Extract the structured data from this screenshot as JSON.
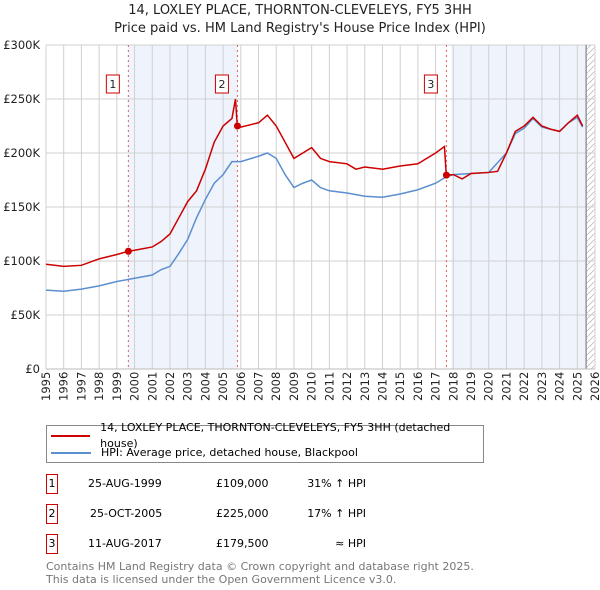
{
  "chart_data": {
    "type": "line",
    "title": "14, LOXLEY PLACE, THORNTON-CLEVELEYS, FY5 3HH",
    "subtitle": "Price paid vs. HM Land Registry's House Price Index (HPI)",
    "xlim": [
      1995,
      2026
    ],
    "ylim": [
      0,
      300000
    ],
    "x_ticks": [
      "1995",
      "1996",
      "1997",
      "1998",
      "1999",
      "2000",
      "2001",
      "2002",
      "2003",
      "2004",
      "2005",
      "2006",
      "2007",
      "2008",
      "2009",
      "2010",
      "2011",
      "2012",
      "2013",
      "2014",
      "2015",
      "2016",
      "2017",
      "2018",
      "2019",
      "2020",
      "2021",
      "2022",
      "2023",
      "2024",
      "2025",
      "2026"
    ],
    "y_ticks": [
      {
        "v": 0,
        "label": "£0"
      },
      {
        "v": 50000,
        "label": "£50K"
      },
      {
        "v": 100000,
        "label": "£100K"
      },
      {
        "v": 150000,
        "label": "£150K"
      },
      {
        "v": 200000,
        "label": "£200K"
      },
      {
        "v": 250000,
        "label": "£250K"
      },
      {
        "v": 300000,
        "label": "£300K"
      }
    ],
    "series": [
      {
        "name": "14, LOXLEY PLACE, THORNTON-CLEVELEYS, FY5 3HH (detached house)",
        "color": "#cc0000",
        "x": [
          1995,
          1996,
          1997,
          1998,
          1999,
          1999.65,
          2000,
          2001,
          2001.5,
          2002,
          2002.5,
          2003,
          2003.5,
          2004,
          2004.5,
          2005,
          2005.5,
          2005.7,
          2005.8,
          2006,
          2007,
          2007.5,
          2008,
          2008.5,
          2009,
          2009.5,
          2010,
          2010.5,
          2011,
          2012,
          2012.5,
          2013,
          2014,
          2015,
          2016,
          2016.5,
          2017,
          2017.5,
          2017.6,
          2018,
          2018.5,
          2019,
          2020,
          2020.5,
          2021,
          2021.5,
          2022,
          2022.5,
          2023,
          2023.5,
          2024,
          2024.5,
          2025,
          2025.3
        ],
        "y": [
          97000,
          95000,
          96000,
          102000,
          106000,
          109000,
          110000,
          113000,
          118000,
          125000,
          140000,
          155000,
          165000,
          185000,
          210000,
          225000,
          232000,
          250000,
          225000,
          224000,
          228000,
          235000,
          225000,
          210000,
          195000,
          200000,
          205000,
          195000,
          192000,
          190000,
          185000,
          187000,
          185000,
          188000,
          190000,
          195000,
          200000,
          206000,
          179500,
          180000,
          176000,
          181000,
          182000,
          183000,
          200000,
          220000,
          225000,
          233000,
          225000,
          222000,
          220000,
          228000,
          235000,
          225000
        ]
      },
      {
        "name": "HPI: Average price, detached house, Blackpool",
        "color": "#5b8fd0",
        "x": [
          1995,
          1996,
          1997,
          1998,
          1999,
          2000,
          2001,
          2001.5,
          2002,
          2002.5,
          2003,
          2003.5,
          2004,
          2004.5,
          2005,
          2005.5,
          2006,
          2007,
          2007.5,
          2008,
          2008.5,
          2009,
          2009.5,
          2010,
          2010.5,
          2011,
          2012,
          2013,
          2014,
          2015,
          2016,
          2017,
          2017.6,
          2018,
          2019,
          2020,
          2021,
          2021.5,
          2022,
          2022.5,
          2023,
          2024,
          2024.5,
          2025,
          2025.3
        ],
        "y": [
          73000,
          72000,
          74000,
          77000,
          81000,
          84000,
          87000,
          92000,
          95000,
          107000,
          120000,
          140000,
          157000,
          172000,
          180000,
          192000,
          192000,
          197000,
          200000,
          195000,
          180000,
          168000,
          172000,
          175000,
          168000,
          165000,
          163000,
          160000,
          159000,
          162000,
          166000,
          172000,
          178000,
          180000,
          181000,
          182000,
          200000,
          218000,
          223000,
          232000,
          224000,
          220000,
          228000,
          233000,
          224000
        ]
      }
    ],
    "sales": [
      {
        "label": "1",
        "x": 1999.65,
        "y": 109000
      },
      {
        "label": "2",
        "x": 2005.81,
        "y": 225000
      },
      {
        "label": "3",
        "x": 2017.61,
        "y": 179500
      }
    ],
    "shaded": [
      [
        1999.65,
        2005.81
      ],
      [
        2017.9,
        2025.5
      ]
    ],
    "data_end": 2025.5
  },
  "table": [
    {
      "num": "1",
      "date": "25-AUG-1999",
      "price": "£109,000",
      "hpi": "31% ↑ HPI"
    },
    {
      "num": "2",
      "date": "25-OCT-2005",
      "price": "£225,000",
      "hpi": "17% ↑ HPI"
    },
    {
      "num": "3",
      "date": "11-AUG-2017",
      "price": "£179,500",
      "hpi": "≈ HPI"
    }
  ],
  "footer": [
    "Contains HM Land Registry data © Crown copyright and database right 2025.",
    "This data is licensed under the Open Government Licence v3.0."
  ]
}
